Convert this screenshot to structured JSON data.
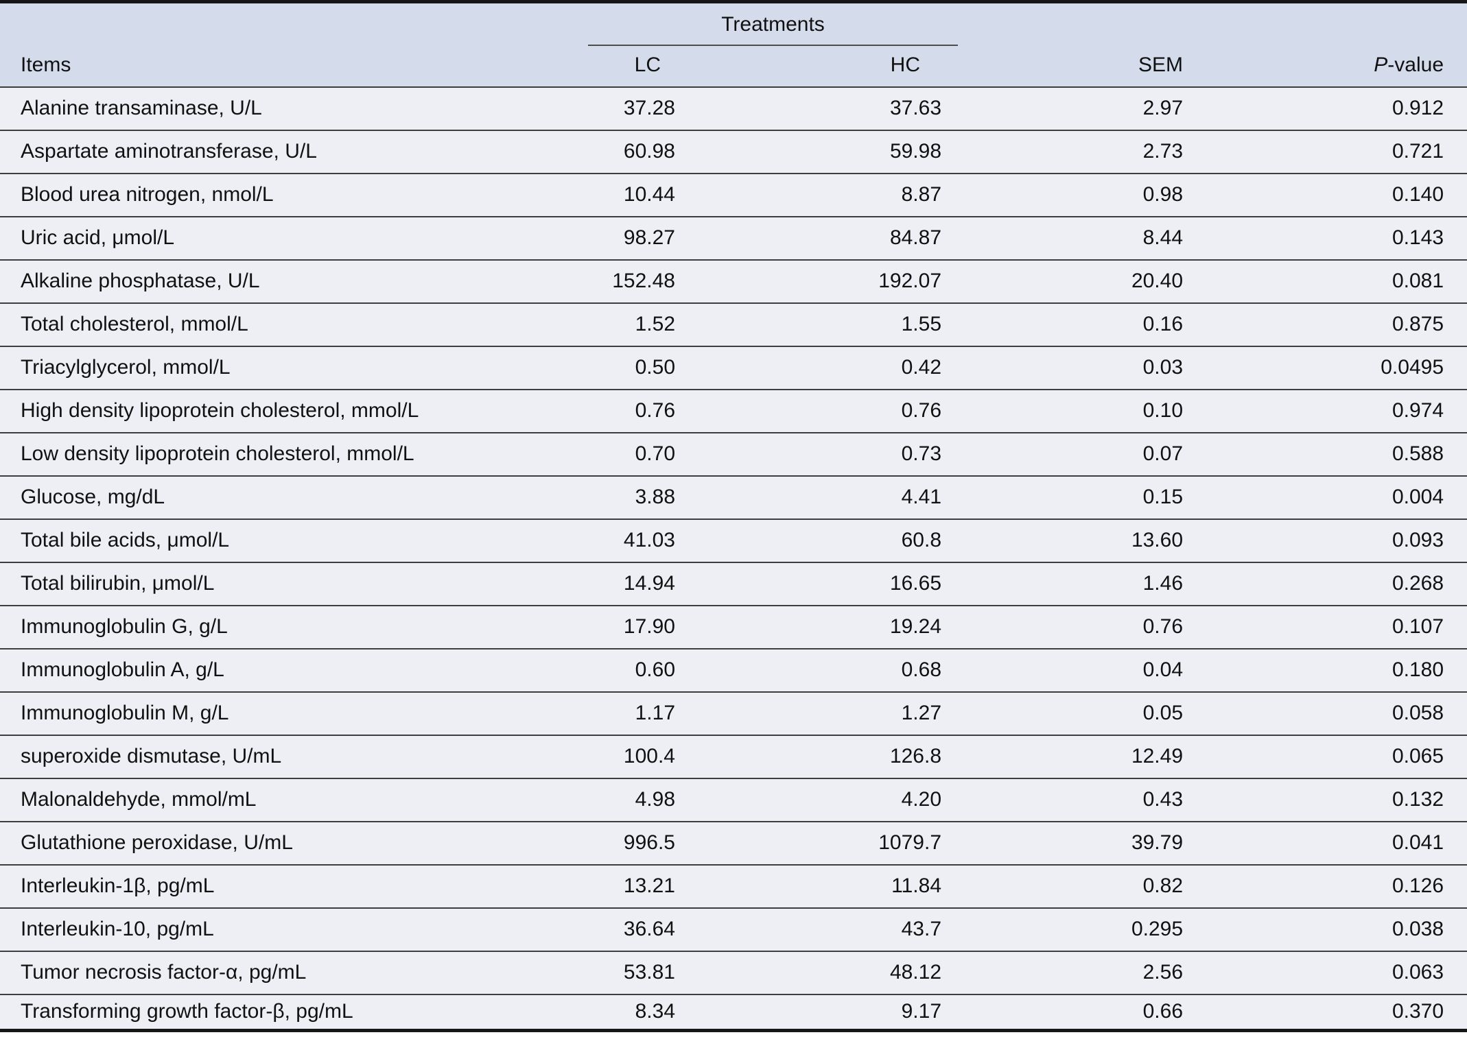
{
  "table": {
    "header": {
      "items": "Items",
      "treatments_group": "Treatments",
      "lc": "LC",
      "hc": "HC",
      "sem": "SEM",
      "p_italic": "P",
      "p_rest": "-value"
    },
    "rows": [
      {
        "item": "Alanine transaminase, U/L",
        "lc": "37.28",
        "hc": "37.63",
        "sem": "2.97",
        "p": "0.912"
      },
      {
        "item": "Aspartate aminotransferase, U/L",
        "lc": "60.98",
        "hc": "59.98",
        "sem": "2.73",
        "p": "0.721"
      },
      {
        "item": "Blood urea nitrogen, nmol/L",
        "lc": "10.44",
        "hc": "8.87",
        "sem": "0.98",
        "p": "0.140"
      },
      {
        "item": "Uric acid, μmol/L",
        "lc": "98.27",
        "hc": "84.87",
        "sem": "8.44",
        "p": "0.143"
      },
      {
        "item": "Alkaline phosphatase, U/L",
        "lc": "152.48",
        "hc": "192.07",
        "sem": "20.40",
        "p": "0.081"
      },
      {
        "item": "Total cholesterol, mmol/L",
        "lc": "1.52",
        "hc": "1.55",
        "sem": "0.16",
        "p": "0.875"
      },
      {
        "item": "Triacylglycerol, mmol/L",
        "lc": "0.50",
        "hc": "0.42",
        "sem": "0.03",
        "p": "0.0495"
      },
      {
        "item": "High density lipoprotein cholesterol, mmol/L",
        "lc": "0.76",
        "hc": "0.76",
        "sem": "0.10",
        "p": "0.974"
      },
      {
        "item": "Low density lipoprotein cholesterol, mmol/L",
        "lc": "0.70",
        "hc": "0.73",
        "sem": "0.07",
        "p": "0.588"
      },
      {
        "item": "Glucose, mg/dL",
        "lc": "3.88",
        "hc": "4.41",
        "sem": "0.15",
        "p": "0.004"
      },
      {
        "item": "Total bile acids, μmol/L",
        "lc": "41.03",
        "hc": "60.8",
        "sem": "13.60",
        "p": "0.093"
      },
      {
        "item": "Total bilirubin, μmol/L",
        "lc": "14.94",
        "hc": "16.65",
        "sem": "1.46",
        "p": "0.268"
      },
      {
        "item": "Immunoglobulin G, g/L",
        "lc": "17.90",
        "hc": "19.24",
        "sem": "0.76",
        "p": "0.107"
      },
      {
        "item": "Immunoglobulin A, g/L",
        "lc": "0.60",
        "hc": "0.68",
        "sem": "0.04",
        "p": "0.180"
      },
      {
        "item": "Immunoglobulin M, g/L",
        "lc": "1.17",
        "hc": "1.27",
        "sem": "0.05",
        "p": "0.058"
      },
      {
        "item": "superoxide dismutase, U/mL",
        "lc": "100.4",
        "hc": "126.8",
        "sem": "12.49",
        "p": "0.065"
      },
      {
        "item": "Malonaldehyde, mmol/mL",
        "lc": "4.98",
        "hc": "4.20",
        "sem": "0.43",
        "p": "0.132"
      },
      {
        "item": "Glutathione peroxidase, U/mL",
        "lc": "996.5",
        "hc": "1079.7",
        "sem": "39.79",
        "p": "0.041"
      },
      {
        "item": "Interleukin-1β, pg/mL",
        "lc": "13.21",
        "hc": "11.84",
        "sem": "0.82",
        "p": "0.126"
      },
      {
        "item": "Interleukin-10, pg/mL",
        "lc": "36.64",
        "hc": "43.7",
        "sem": "0.295",
        "p": "0.038"
      },
      {
        "item": "Tumor necrosis factor-α, pg/mL",
        "lc": "53.81",
        "hc": "48.12",
        "sem": "2.56",
        "p": "0.063"
      },
      {
        "item": "Transforming growth factor-β, pg/mL",
        "lc": "8.34",
        "hc": "9.17",
        "sem": "0.66",
        "p": "0.370"
      }
    ]
  },
  "colors": {
    "header_bg": "#d4dcec",
    "row_bg": "#edeff4",
    "thick_rule": "#161616",
    "thin_rule": "#3d3d3d"
  }
}
